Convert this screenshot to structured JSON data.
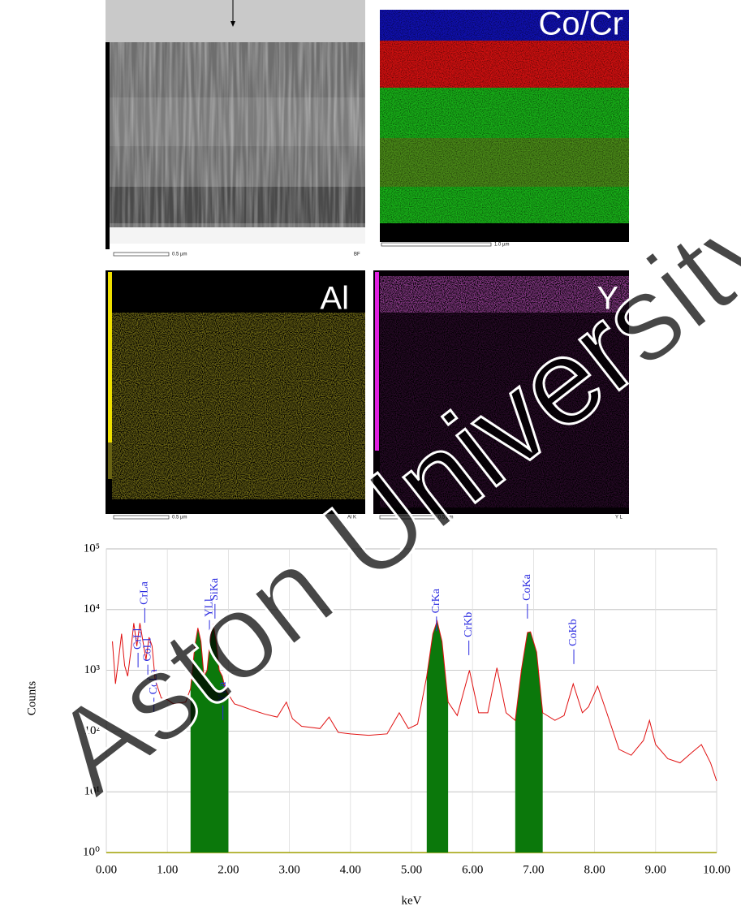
{
  "panels": [
    {
      "scale": "0.5 µm",
      "corner": "BF"
    },
    {
      "label": "Co/Cr",
      "scale": "1.0 µm"
    },
    {
      "label": "Al",
      "scale": "0.5 µm",
      "corner": "Al K"
    },
    {
      "label": "Y",
      "scale": "0.5 µm",
      "corner": "Y L"
    }
  ],
  "watermark": "Aston University",
  "chart_data": {
    "type": "line",
    "log_y": true,
    "grid": true,
    "x_label": "keV",
    "y_label": "Counts",
    "xlim": [
      0,
      10
    ],
    "ylim": [
      1,
      100000
    ],
    "xticks": [
      {
        "value": 0,
        "label": "0.00"
      },
      {
        "value": 1,
        "label": "1.00"
      },
      {
        "value": 2,
        "label": "2.00"
      },
      {
        "value": 3,
        "label": "3.00"
      },
      {
        "value": 4,
        "label": "4.00"
      },
      {
        "value": 5,
        "label": "5.00"
      },
      {
        "value": 6,
        "label": "6.00"
      },
      {
        "value": 7,
        "label": "7.00"
      },
      {
        "value": 8,
        "label": "8.00"
      },
      {
        "value": 9,
        "label": "9.00"
      },
      {
        "value": 10,
        "label": "10.00"
      }
    ],
    "yticks": [
      {
        "value": 1,
        "label": "10⁰"
      },
      {
        "value": 10,
        "label": "10¹"
      },
      {
        "value": 100,
        "label": "10²"
      },
      {
        "value": 1000,
        "label": "10³"
      },
      {
        "value": 10000,
        "label": "10⁴"
      },
      {
        "value": 100000,
        "label": "10⁵"
      }
    ],
    "series": [
      {
        "color": "#e01010",
        "x": [
          0.1,
          0.15,
          0.2,
          0.25,
          0.3,
          0.35,
          0.4,
          0.45,
          0.5,
          0.55,
          0.6,
          0.65,
          0.7,
          0.75,
          0.8,
          0.9,
          1.0,
          1.1,
          1.2,
          1.3,
          1.38,
          1.45,
          1.5,
          1.55,
          1.6,
          1.65,
          1.7,
          1.75,
          1.8,
          1.85,
          1.9,
          1.95,
          2.0,
          2.1,
          2.2,
          2.4,
          2.6,
          2.8,
          2.95,
          3.05,
          3.2,
          3.5,
          3.65,
          3.8,
          4.0,
          4.3,
          4.6,
          4.8,
          4.95,
          5.1,
          5.25,
          5.35,
          5.42,
          5.5,
          5.6,
          5.75,
          5.95,
          6.1,
          6.25,
          6.4,
          6.55,
          6.7,
          6.8,
          6.9,
          6.95,
          7.05,
          7.15,
          7.35,
          7.5,
          7.65,
          7.8,
          7.9,
          8.05,
          8.2,
          8.4,
          8.6,
          8.8,
          8.9,
          9.0,
          9.2,
          9.4,
          9.6,
          9.75,
          9.9,
          10.0
        ],
        "values": [
          3000,
          600,
          1500,
          4000,
          1200,
          800,
          2000,
          6000,
          2500,
          6000,
          3000,
          1500,
          3500,
          2500,
          700,
          350,
          330,
          280,
          290,
          300,
          500,
          2500,
          5000,
          3000,
          800,
          1000,
          3000,
          5800,
          3000,
          1000,
          800,
          500,
          400,
          280,
          260,
          220,
          190,
          170,
          300,
          160,
          120,
          110,
          170,
          95,
          90,
          85,
          90,
          200,
          110,
          130,
          800,
          4000,
          6500,
          3000,
          300,
          180,
          1000,
          200,
          200,
          1100,
          200,
          150,
          1000,
          4200,
          4300,
          2000,
          200,
          150,
          180,
          600,
          200,
          250,
          550,
          200,
          50,
          40,
          70,
          150,
          60,
          35,
          30,
          45,
          60,
          30,
          15
        ]
      }
    ],
    "filled_ranges": [
      [
        1.38,
        2.0
      ],
      [
        5.25,
        5.6
      ],
      [
        6.7,
        7.15
      ]
    ],
    "fill_color": "#0b780b",
    "annotations": [
      {
        "label": "CrLl",
        "x": 0.52,
        "y": 2200
      },
      {
        "label": "CrLa",
        "x": 0.63,
        "y": 12000
      },
      {
        "label": "CoLl",
        "x": 0.68,
        "y": 1400
      },
      {
        "label": "CoLa",
        "x": 0.78,
        "y": 400
      },
      {
        "label": "YLl",
        "x": 1.69,
        "y": 7600
      },
      {
        "label": "SiKa",
        "x": 1.78,
        "y": 14000
      },
      {
        "label": "YLa",
        "x": 1.91,
        "y": 300
      },
      {
        "label": "CrKa",
        "x": 5.41,
        "y": 8700
      },
      {
        "label": "CrKb",
        "x": 5.94,
        "y": 3500
      },
      {
        "label": "CoKa",
        "x": 6.9,
        "y": 14000
      },
      {
        "label": "CoKb",
        "x": 7.66,
        "y": 2500
      }
    ],
    "annotation_color": "#2a2ae0"
  }
}
